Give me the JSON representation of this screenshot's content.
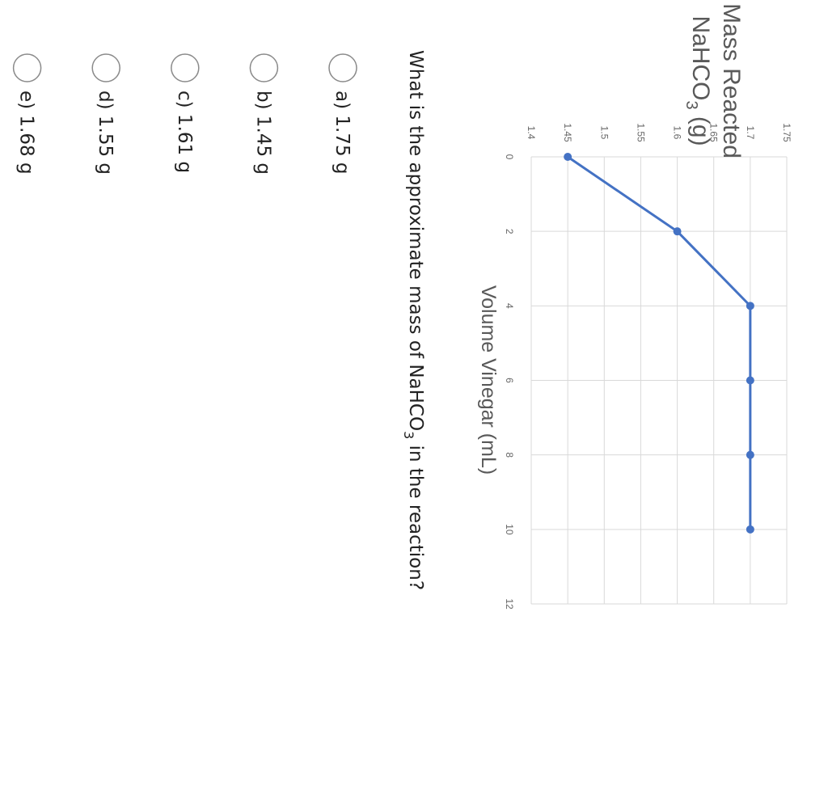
{
  "chart_data": {
    "type": "line",
    "title": "",
    "xlabel": "Volume  Vinegar  (mL)",
    "ylabel": {
      "line1": "Mass Reacted",
      "line2_main": "NaHCO",
      "line2_sub": "3",
      "line2_end": "  (g)"
    },
    "x": [
      0,
      2,
      4,
      6,
      8,
      10
    ],
    "y": [
      1.45,
      1.6,
      1.7,
      1.7,
      1.7,
      1.7
    ],
    "xlim": [
      0,
      12
    ],
    "ylim": [
      1.4,
      1.75
    ],
    "x_ticks": [
      "0",
      "2",
      "4",
      "6",
      "8",
      "10",
      "12"
    ],
    "y_ticks": [
      "1.4",
      "1.45",
      "1.5",
      "1.55",
      "1.6",
      "1.65",
      "1.7",
      "1.75"
    ],
    "grid": true,
    "line_color": "#4472c4"
  },
  "question": {
    "text_pre": "What is the approximate mass of NaHCO",
    "text_sub": "3",
    "text_post": " in the reaction?",
    "options": [
      {
        "label": "a) 1.75 g"
      },
      {
        "label": "b) 1.45 g"
      },
      {
        "label": "c) 1.61 g"
      },
      {
        "label": "d) 1.55 g"
      },
      {
        "label": "e) 1.68 g"
      }
    ]
  }
}
